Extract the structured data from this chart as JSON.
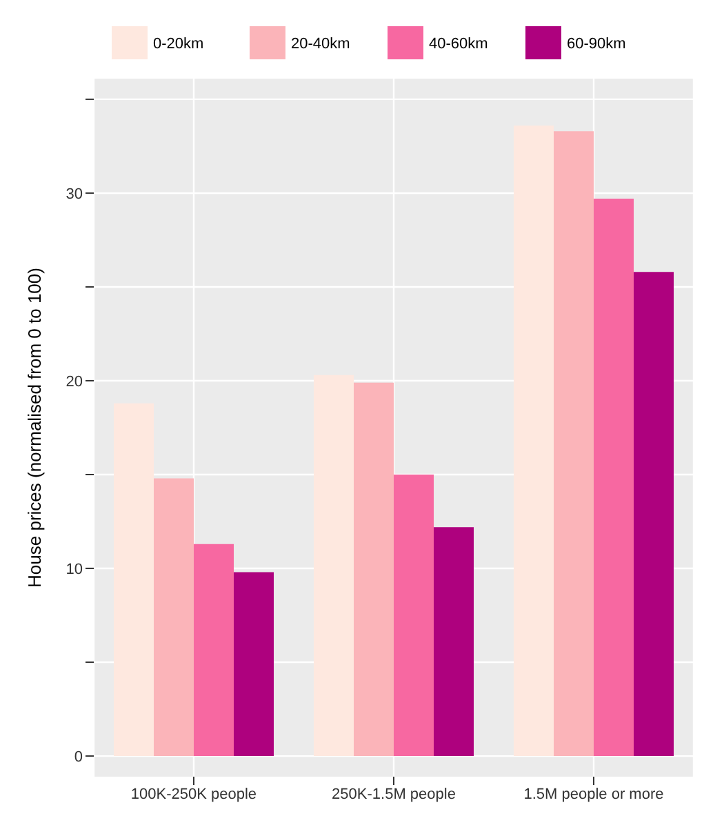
{
  "chart_data": {
    "type": "bar",
    "ylabel": "House prices (normalised from 0 to 100)",
    "categories": [
      "100K-250K people",
      "250K-1.5M people",
      "1.5M people or more"
    ],
    "series": [
      {
        "name": "0-20km",
        "color": "#fee8df",
        "values": [
          18.8,
          20.3,
          33.6
        ]
      },
      {
        "name": "20-40km",
        "color": "#fbb4b9",
        "values": [
          14.8,
          19.9,
          33.3
        ]
      },
      {
        "name": "40-60km",
        "color": "#f768a1",
        "values": [
          11.3,
          15.0,
          29.7
        ]
      },
      {
        "name": "60-90km",
        "color": "#ae017e",
        "values": [
          9.8,
          12.2,
          25.8
        ]
      }
    ],
    "ylim": [
      -1.1,
      36.1
    ],
    "yticks": [
      0,
      {
        "value": 5,
        "label": null
      },
      10,
      {
        "value": 15,
        "label": null
      },
      20,
      {
        "value": 25,
        "label": null
      },
      30,
      {
        "value": 35,
        "label": null
      }
    ],
    "grid": true,
    "legend": "top"
  }
}
